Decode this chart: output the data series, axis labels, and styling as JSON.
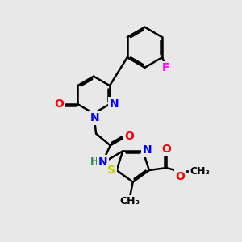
{
  "background_color": "#e8e8e8",
  "atom_colors": {
    "N": "#0000ff",
    "O": "#ff0000",
    "S": "#cccc00",
    "F": "#ff00ff",
    "H": "#2e8b57",
    "C": "#000000"
  },
  "bond_color": "#000000",
  "bond_width": 1.8,
  "font_size": 10,
  "figsize": [
    3.0,
    3.0
  ],
  "dpi": 100
}
